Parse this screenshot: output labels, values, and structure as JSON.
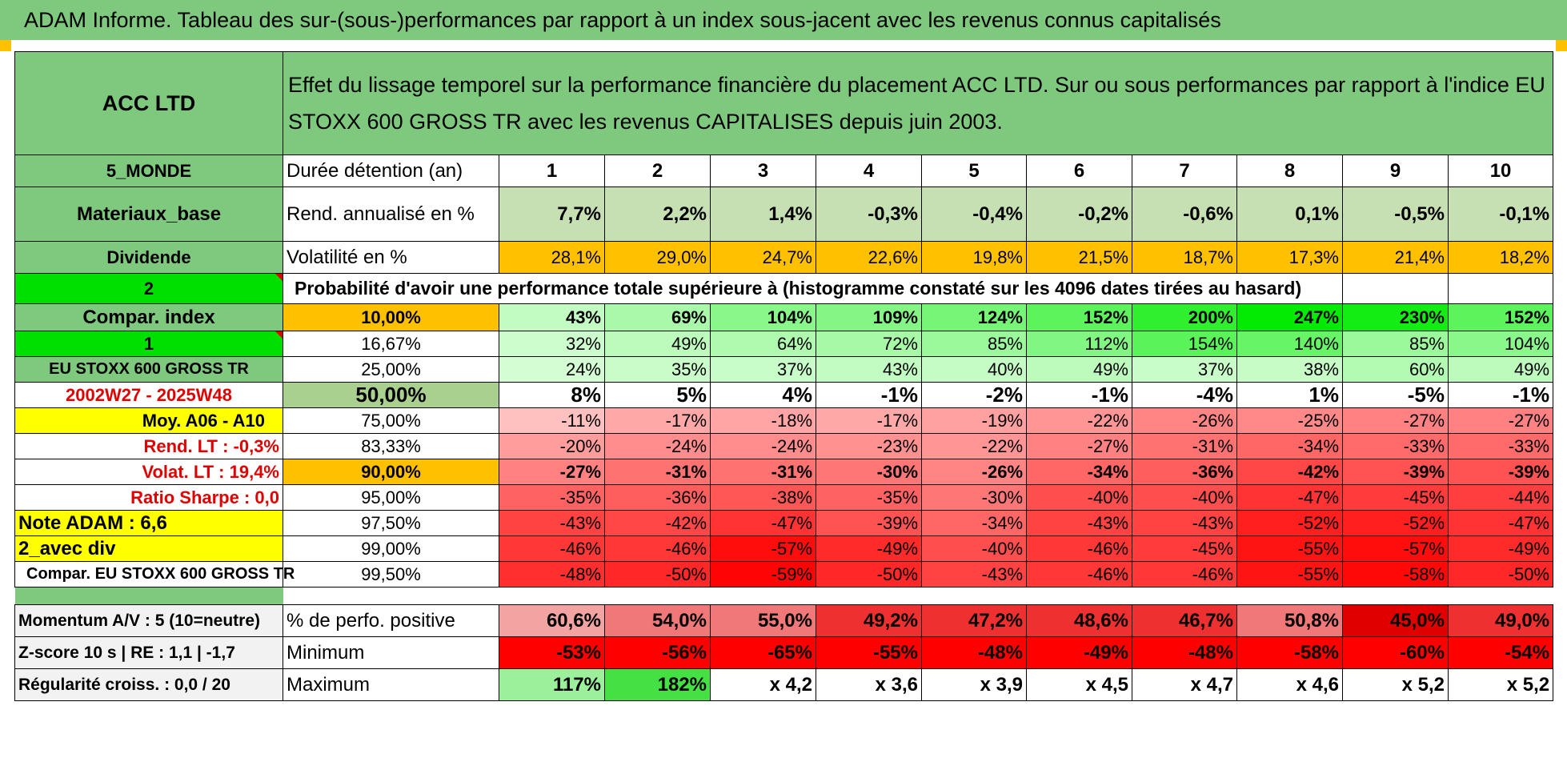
{
  "banner": "ADAM Informe. Tableau des sur-(sous-)performances par rapport à un index sous-jacent avec les revenus connus capitalisés",
  "header": {
    "company": "ACC LTD",
    "description": "Effet du lissage temporel sur la performance financière du placement ACC LTD. Sur ou sous performances par rapport à l'indice EU STOXX 600 GROSS TR avec les revenus CAPITALISES depuis juin 2003."
  },
  "side": {
    "zone": "5_MONDE",
    "sector": "Materiaux_base",
    "dividende": "Dividende",
    "code2": "2",
    "compar_index": "Compar. index",
    "code1": "1",
    "index_name": "EU STOXX 600 GROSS TR",
    "period": "2002W27 - 2025W48",
    "moy": "Moy. A06 - A10",
    "rend_lt": "Rend. LT :    -0,3%",
    "volat_lt": "Volat. LT :    19,4%",
    "sharpe": "Ratio Sharpe :     0,0",
    "note": "Note ADAM : 6,6",
    "avec_div": "2_avec div",
    "compar_eu": "Compar. EU STOXX 600 GROSS TR"
  },
  "rows": {
    "duree_label": "Durée détention (an)",
    "years": [
      "1",
      "2",
      "3",
      "4",
      "5",
      "6",
      "7",
      "8",
      "9",
      "10"
    ],
    "rend_label": "Rend. annualisé en %",
    "rend": [
      "7,7%",
      "2,2%",
      "1,4%",
      "-0,3%",
      "-0,4%",
      "-0,2%",
      "-0,6%",
      "0,1%",
      "-0,5%",
      "-0,1%"
    ],
    "vol_label": "Volatilité en %",
    "vol": [
      "28,1%",
      "29,0%",
      "24,7%",
      "22,6%",
      "19,8%",
      "21,5%",
      "18,7%",
      "17,3%",
      "21,4%",
      "18,2%"
    ],
    "proba_label": "Probabilité d'avoir une performance totale supérieure à (histogramme constaté sur les 4096 dates tirées au hasard)"
  },
  "quantiles": [
    {
      "q": "10,00%",
      "v": [
        "43%",
        "69%",
        "104%",
        "109%",
        "124%",
        "152%",
        "200%",
        "247%",
        "230%",
        "152%"
      ]
    },
    {
      "q": "16,67%",
      "v": [
        "32%",
        "49%",
        "64%",
        "72%",
        "85%",
        "112%",
        "154%",
        "140%",
        "85%",
        "104%"
      ]
    },
    {
      "q": "25,00%",
      "v": [
        "24%",
        "35%",
        "37%",
        "43%",
        "40%",
        "49%",
        "37%",
        "38%",
        "60%",
        "49%"
      ]
    },
    {
      "q": "50,00%",
      "v": [
        "8%",
        "5%",
        "4%",
        "-1%",
        "-2%",
        "-1%",
        "-4%",
        "1%",
        "-5%",
        "-1%"
      ]
    },
    {
      "q": "75,00%",
      "v": [
        "-11%",
        "-17%",
        "-18%",
        "-17%",
        "-19%",
        "-22%",
        "-26%",
        "-25%",
        "-27%",
        "-27%"
      ]
    },
    {
      "q": "83,33%",
      "v": [
        "-20%",
        "-24%",
        "-24%",
        "-23%",
        "-22%",
        "-27%",
        "-31%",
        "-34%",
        "-33%",
        "-33%"
      ]
    },
    {
      "q": "90,00%",
      "v": [
        "-27%",
        "-31%",
        "-31%",
        "-30%",
        "-26%",
        "-34%",
        "-36%",
        "-42%",
        "-39%",
        "-39%"
      ]
    },
    {
      "q": "95,00%",
      "v": [
        "-35%",
        "-36%",
        "-38%",
        "-35%",
        "-30%",
        "-40%",
        "-40%",
        "-47%",
        "-45%",
        "-44%"
      ]
    },
    {
      "q": "97,50%",
      "v": [
        "-43%",
        "-42%",
        "-47%",
        "-39%",
        "-34%",
        "-43%",
        "-43%",
        "-52%",
        "-52%",
        "-47%"
      ]
    },
    {
      "q": "99,00%",
      "v": [
        "-46%",
        "-46%",
        "-57%",
        "-49%",
        "-40%",
        "-46%",
        "-45%",
        "-55%",
        "-57%",
        "-49%"
      ]
    },
    {
      "q": "99,50%",
      "v": [
        "-48%",
        "-50%",
        "-59%",
        "-50%",
        "-43%",
        "-46%",
        "-46%",
        "-55%",
        "-58%",
        "-50%"
      ]
    }
  ],
  "bottom": {
    "momentum": "Momentum A/V : 5 (10=neutre)",
    "zscore": "Z-score 10 s | RE : 1,1 | -1,7",
    "regularite": "Régularité croiss. : 0,0 / 20",
    "pos_label": "% de perfo. positive",
    "pos": [
      "60,6%",
      "54,0%",
      "55,0%",
      "49,2%",
      "47,2%",
      "48,6%",
      "46,7%",
      "50,8%",
      "45,0%",
      "49,0%"
    ],
    "min_label": "Minimum",
    "min": [
      "-53%",
      "-56%",
      "-65%",
      "-55%",
      "-48%",
      "-49%",
      "-48%",
      "-58%",
      "-60%",
      "-54%"
    ],
    "max_label": "Maximum",
    "max": [
      "117%",
      "182%",
      "x 4,2",
      "x 3,6",
      "x 3,9",
      "x 4,5",
      "x 4,7",
      "x 4,6",
      "x 5,2",
      "x 5,2"
    ]
  },
  "colors": {
    "header_green": "#7fc97f",
    "bright_green": "#00e000",
    "orange": "#ffc000",
    "yellow": "#ffff00",
    "red_text": "#e00000"
  }
}
